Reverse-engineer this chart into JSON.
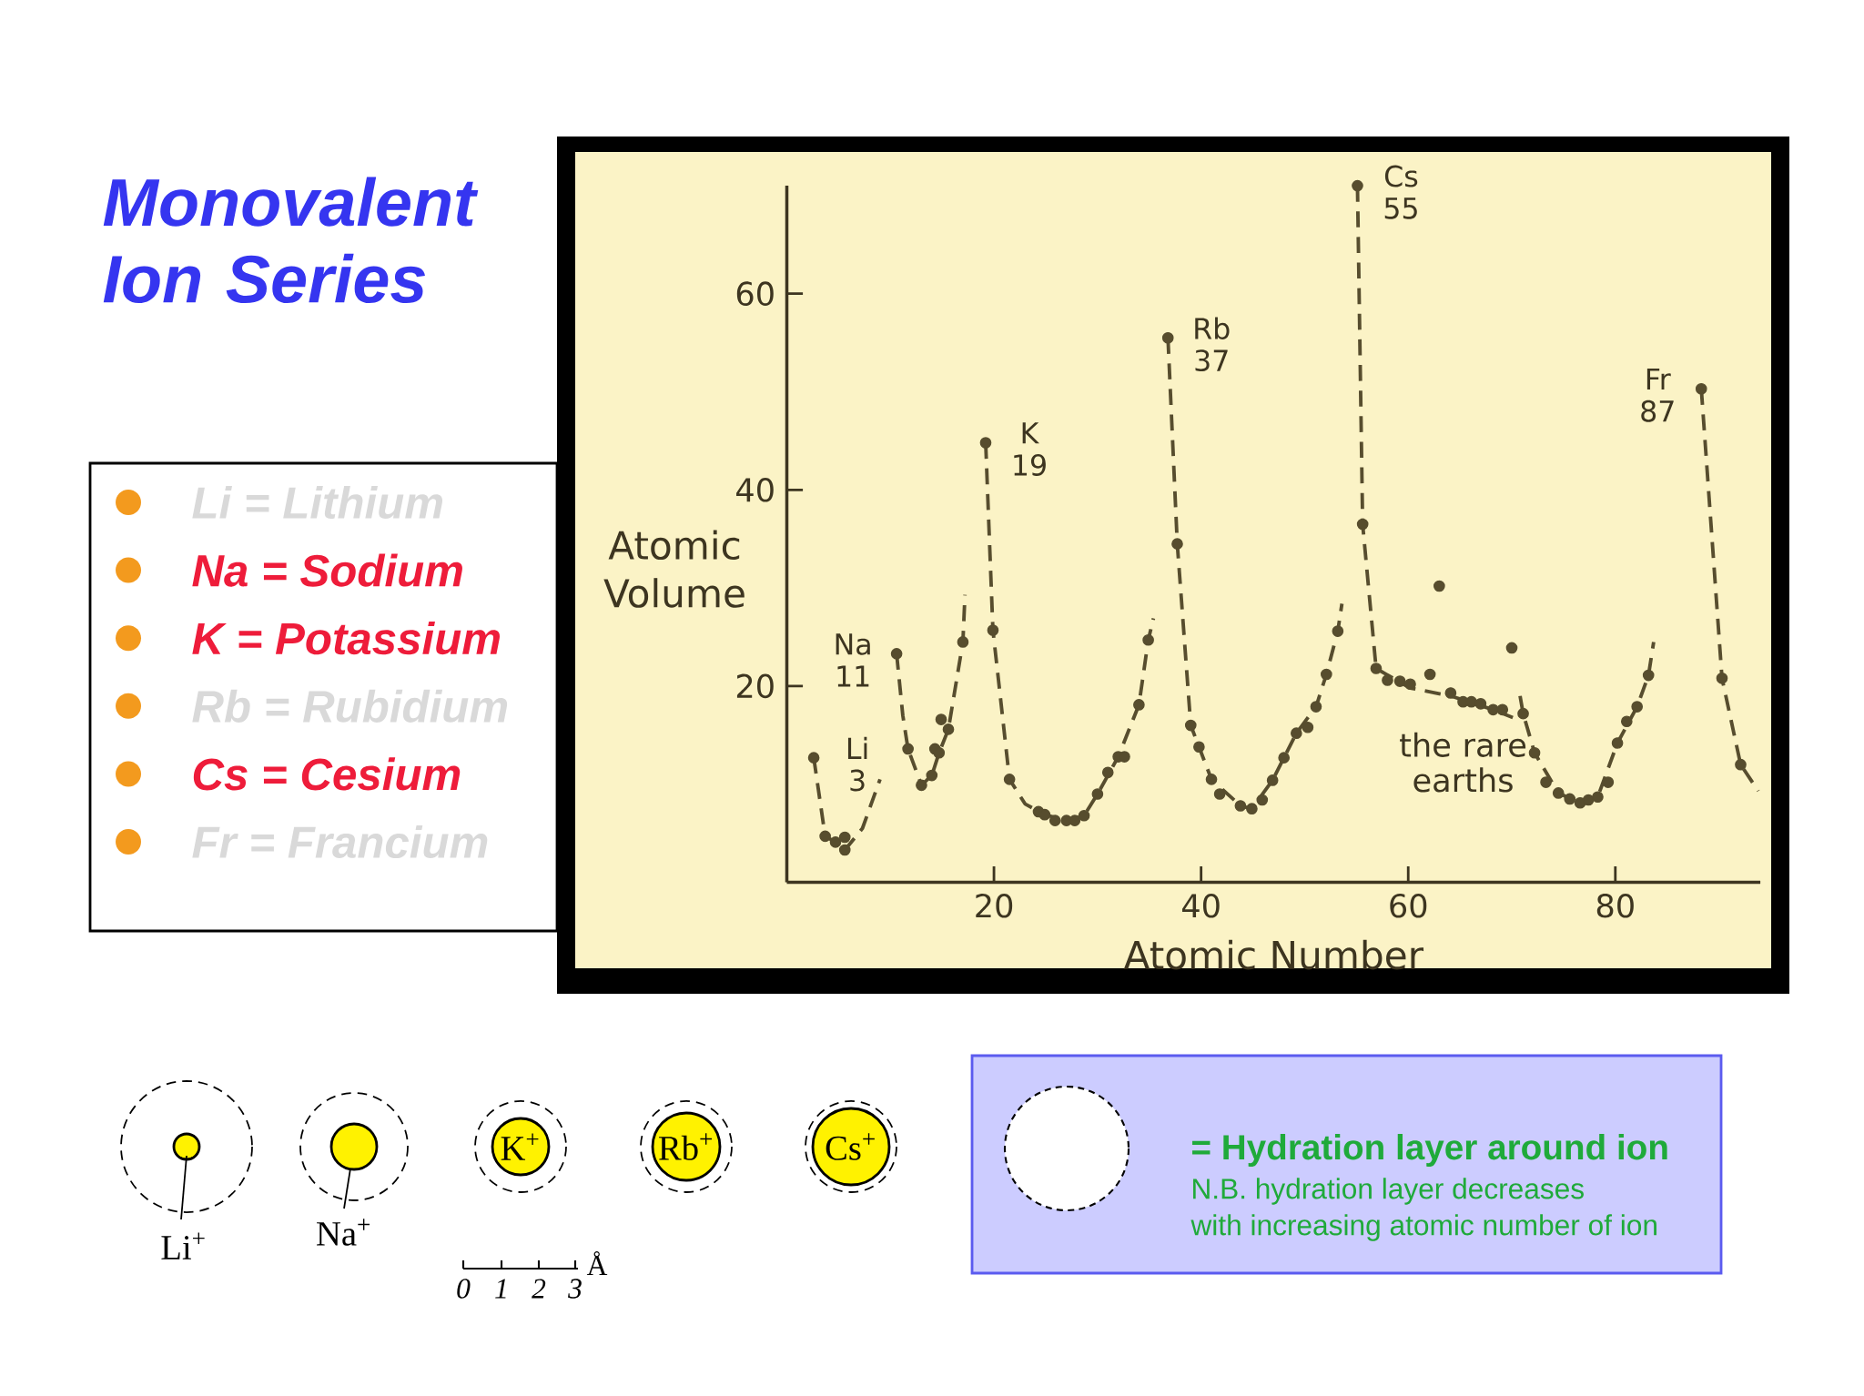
{
  "chart_data": {
    "type": "scatter",
    "title": "Monovalent Ion Series",
    "xlabel": "Atomic Number",
    "ylabel": "Atomic Volume",
    "xlim": [
      0,
      94
    ],
    "ylim": [
      0,
      71
    ],
    "xticks": [
      20,
      40,
      60,
      80
    ],
    "yticks": [
      20,
      40,
      60
    ],
    "series": [
      {
        "type": "line",
        "color": "#574d2e",
        "line_style": "dashed",
        "marker": "none",
        "x": [
          2.6,
          3.7,
          4.7,
          5.6,
          7.3,
          9.0,
          9.8,
          10.6,
          11.2,
          11.7,
          13.0,
          14.0,
          14.7,
          15.6,
          17.0,
          17.2,
          18,
          19.2,
          19.9,
          21.5,
          23,
          24.9,
          27.0,
          28.7,
          30.0,
          32.0,
          34.0,
          34.9,
          35.4,
          36,
          36.8,
          37.7,
          39.0,
          41.0,
          43.8,
          44.9,
          46.9,
          49.2,
          51.1,
          52.1,
          53.2,
          53.6,
          54.5,
          55.1,
          55.6,
          56.9,
          60.2,
          64.1,
          68.2,
          70.1,
          70.5,
          70.8,
          71.1,
          72.2,
          74.5,
          76.6,
          78.3,
          80.2,
          82.1,
          83.2,
          83.7,
          86,
          88.3,
          90.3,
          92.1,
          93.8
        ],
        "values": [
          12.7,
          4.7,
          4.1,
          3.3,
          5.5,
          10.5,
          null,
          23.3,
          17,
          13.6,
          9.9,
          10.9,
          13.2,
          15.6,
          24.5,
          29.3,
          null,
          44.8,
          25.7,
          10.5,
          8,
          6.9,
          6.3,
          6.8,
          9.0,
          12.8,
          18.1,
          24.7,
          26.9,
          null,
          55.5,
          34.5,
          16.0,
          10.5,
          7.8,
          7.5,
          10.4,
          15.2,
          17.9,
          21.2,
          25.6,
          28.4,
          null,
          71.0,
          36.5,
          21.8,
          19.8,
          19.0,
          17.6,
          16.8,
          null,
          19.0,
          17.2,
          13.2,
          9.1,
          8.1,
          8.7,
          14.2,
          17.9,
          21.1,
          24.5,
          null,
          50.3,
          20.8,
          12.0,
          9.3
        ]
      },
      {
        "type": "scatter",
        "color": "#574d2e",
        "marker": "circle",
        "x": [
          2.6,
          3.7,
          4.7,
          5.6,
          5.6,
          10.6,
          11.7,
          13.0,
          14.0,
          14.3,
          14.7,
          14.9,
          15.6,
          17.0,
          19.2,
          19.9,
          21.5,
          24.3,
          24.9,
          25.9,
          27.0,
          27.8,
          28.7,
          30.0,
          31.0,
          32.0,
          32.6,
          34.0,
          34.9,
          36.8,
          37.7,
          39.0,
          39.8,
          41.0,
          41.8,
          43.8,
          44.9,
          45.9,
          46.9,
          48.0,
          49.2,
          50.3,
          51.1,
          52.1,
          53.2,
          55.1,
          55.6,
          56.9,
          58.0,
          59.2,
          60.2,
          62.1,
          63.0,
          64.1,
          65.3,
          66.1,
          67.0,
          68.2,
          69.1,
          70.0,
          71.1,
          72.2,
          73.3,
          74.5,
          75.6,
          76.6,
          77.4,
          78.3,
          79.3,
          80.2,
          81.1,
          82.1,
          83.2,
          88.3,
          90.3,
          92.1
        ],
        "values": [
          12.7,
          4.7,
          4.1,
          4.6,
          3.3,
          23.3,
          13.6,
          9.9,
          10.9,
          13.6,
          13.2,
          16.6,
          15.6,
          24.5,
          44.8,
          25.7,
          10.5,
          7.2,
          6.9,
          6.3,
          6.3,
          6.3,
          6.8,
          9.0,
          11.2,
          12.8,
          12.8,
          18.1,
          24.7,
          55.5,
          34.5,
          16.0,
          13.8,
          10.5,
          9.0,
          7.8,
          7.5,
          8.4,
          10.4,
          12.7,
          15.2,
          15.8,
          17.9,
          21.2,
          25.6,
          71.0,
          36.5,
          21.8,
          20.6,
          20.5,
          20.2,
          21.2,
          30.2,
          19.3,
          18.4,
          18.4,
          18.2,
          17.6,
          17.6,
          23.9,
          17.2,
          13.2,
          10.2,
          9.1,
          8.5,
          8.1,
          8.4,
          8.7,
          10.2,
          14.2,
          16.4,
          17.9,
          21.1,
          50.3,
          20.8,
          12.0
        ]
      }
    ],
    "annotations": [
      "Li = Lithium",
      "Na = Sodium",
      "K = Potassium",
      "Rb = Rubidium",
      "Cs = Cesium",
      "Fr = Francium",
      {
        "text": "Li 3",
        "x": 2.6,
        "y": 12.7
      },
      {
        "text": "Na 11",
        "x": 10.6,
        "y": 23.3
      },
      {
        "text": "K 19",
        "x": 19.2,
        "y": 44.8
      },
      {
        "text": "Rb 37",
        "x": 36.8,
        "y": 55.5
      },
      {
        "text": "Cs 55",
        "x": 55.1,
        "y": 71.0
      },
      {
        "text": "Fr 87",
        "x": 88.3,
        "y": 50.3
      },
      {
        "text": "the rare earths",
        "x": 65.3,
        "y": 18.4
      },
      "Li$^{+}$",
      "Na$^{+}$",
      "K$^{+}$",
      "Rb$^{+}$",
      "Cs$^{+}$",
      "0",
      "1",
      "2",
      "3",
      "Å",
      "= Hydration layer around ion",
      "N.B. hydration layer decreases",
      "with increasing atomic number of ion"
    ]
  }
}
